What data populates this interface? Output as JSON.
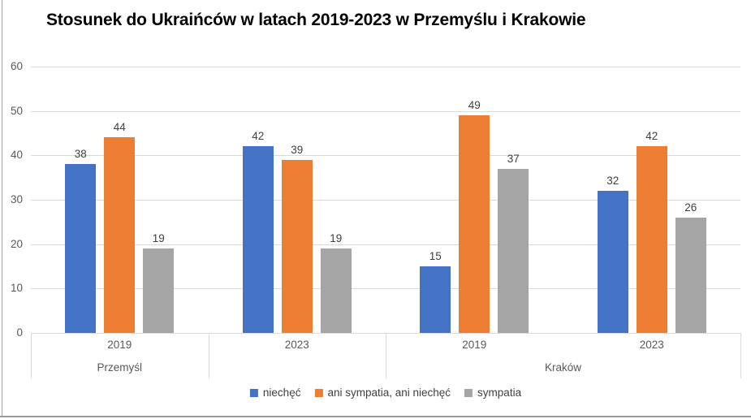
{
  "chart_data": {
    "type": "bar",
    "title": "Stosunek do Ukraińców w latach 2019-2023 w Przemyślu i Krakowie",
    "categories": [
      "2019",
      "2023",
      "2019",
      "2023"
    ],
    "category_groups": [
      {
        "label": "Przemyśl",
        "span": 1
      },
      {
        "label": "",
        "span": 1
      },
      {
        "label": "Kraków",
        "span": 2
      }
    ],
    "series": [
      {
        "name": "niechęć",
        "color": "#4472C4",
        "values": [
          38,
          42,
          15,
          32
        ]
      },
      {
        "name": "ani sympatia, ani niechęć",
        "color": "#ED7D31",
        "values": [
          44,
          39,
          49,
          42
        ]
      },
      {
        "name": "sympatia",
        "color": "#A5A5A5",
        "values": [
          19,
          19,
          37,
          26
        ]
      }
    ],
    "ylim": [
      0,
      60
    ],
    "yticks": [
      0,
      10,
      20,
      30,
      40,
      50,
      60
    ],
    "data_labels": true,
    "grid": true,
    "legend_position": "bottom",
    "colors": {
      "gridline": "#d9d9d9",
      "axis_label": "#595959",
      "data_label": "#404040",
      "title": "#000000"
    }
  }
}
